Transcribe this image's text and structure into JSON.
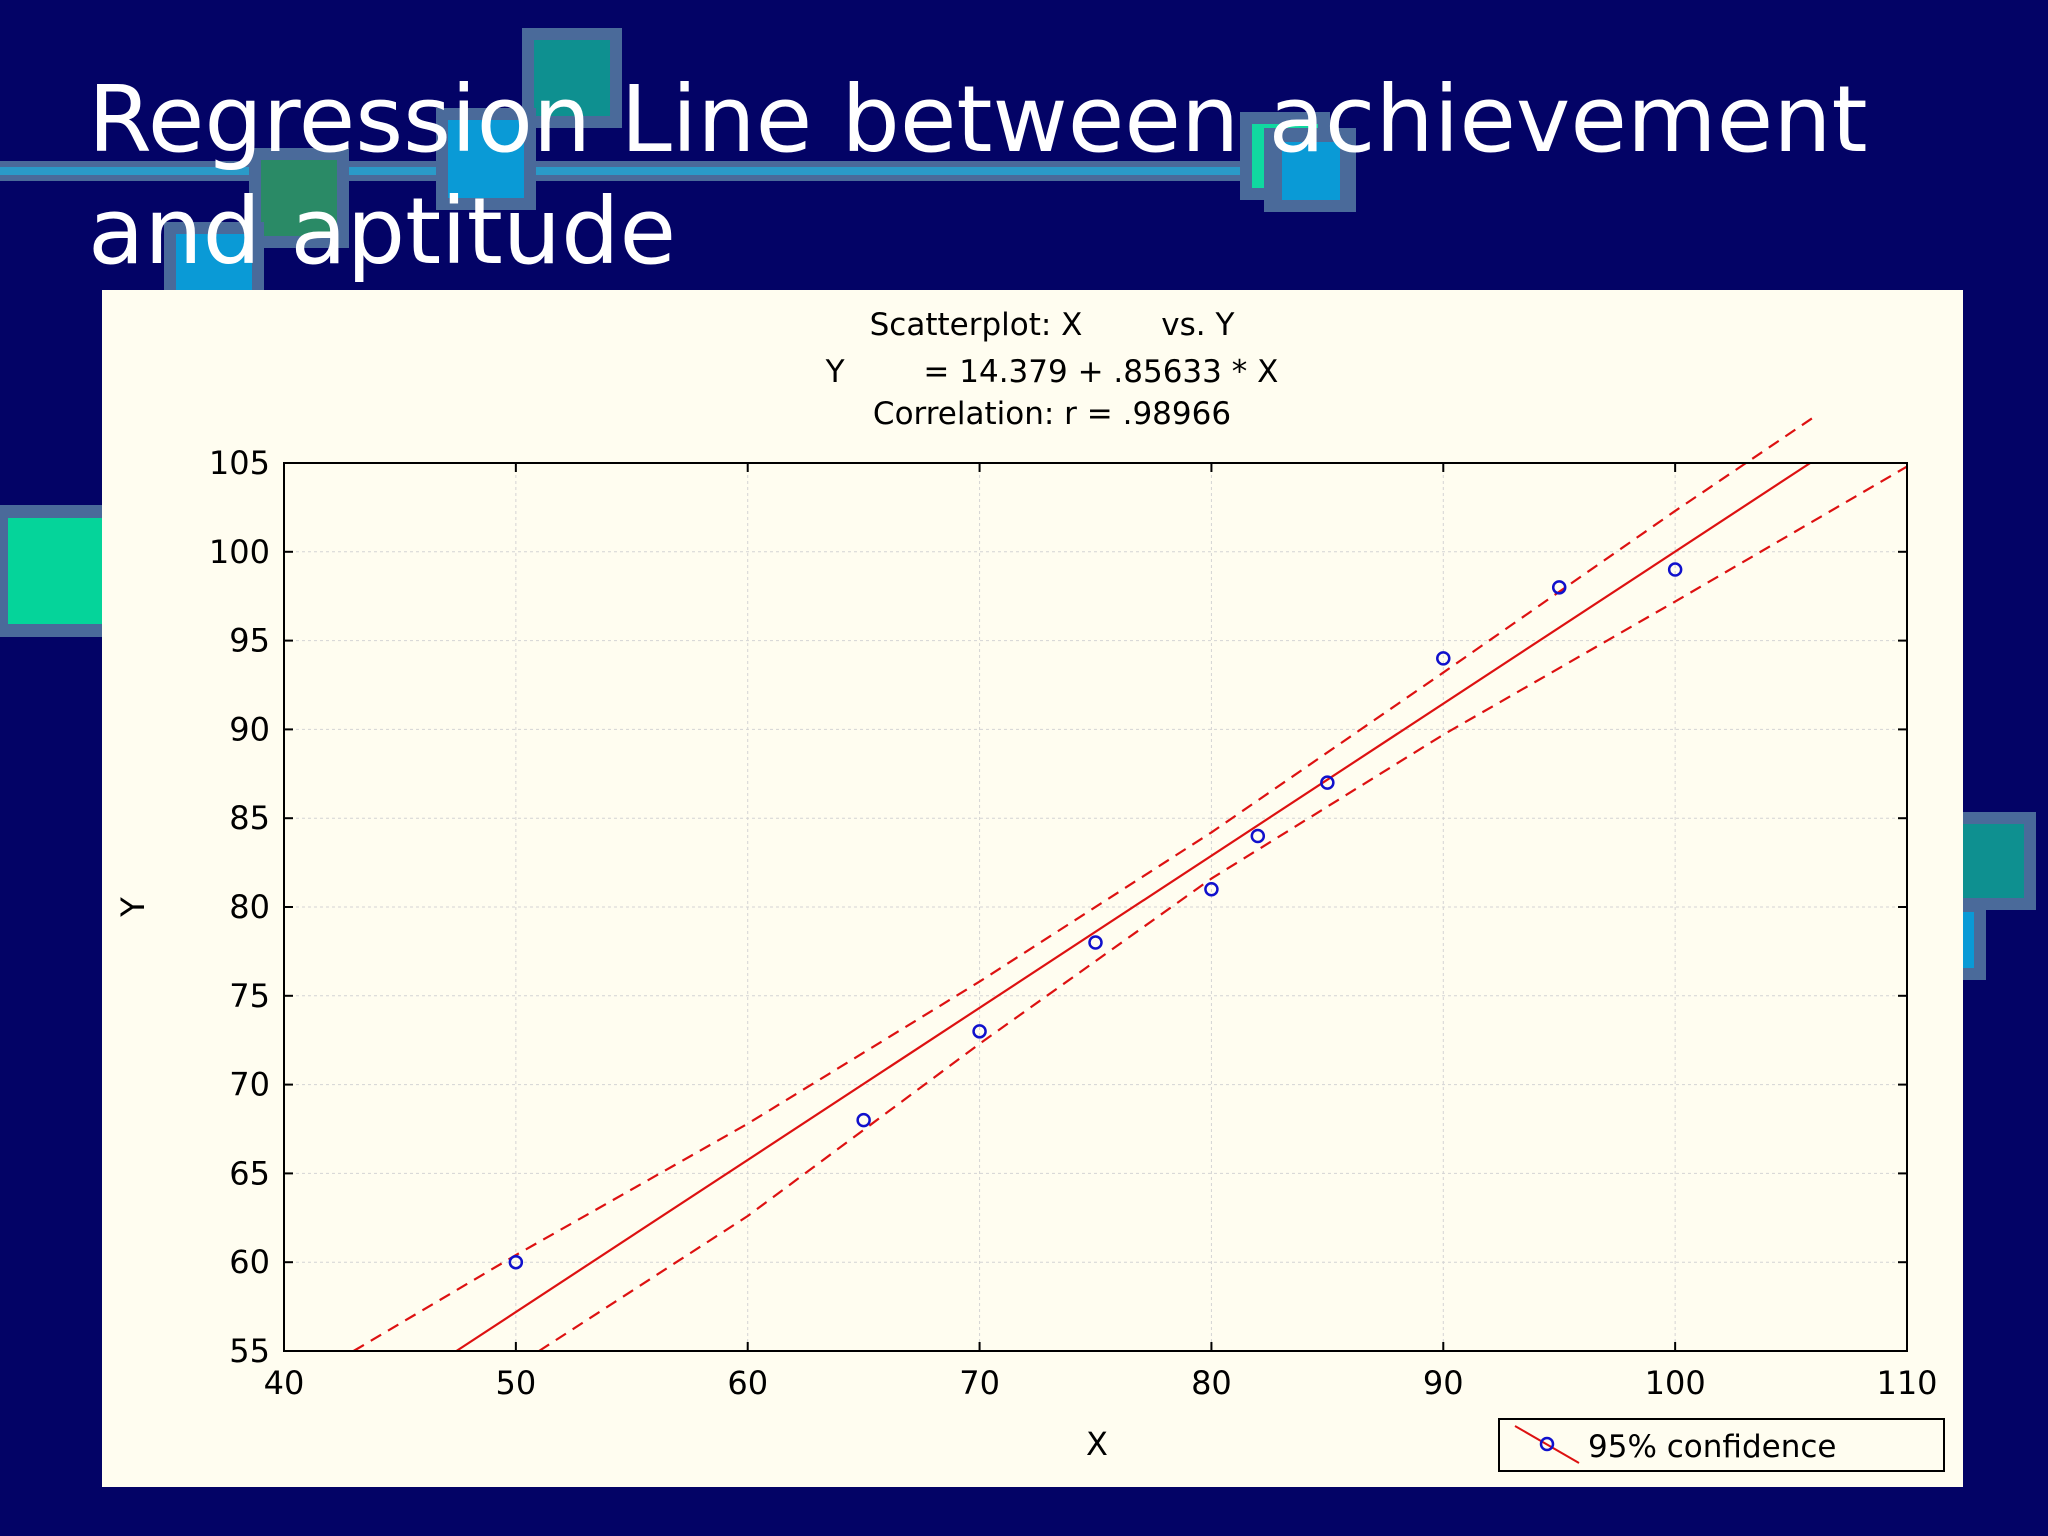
{
  "slide": {
    "title": "Regression Line between achievement and aptitude",
    "background_color": "#030366"
  },
  "chart_data": {
    "type": "scatter",
    "title_lines": [
      "Scatterplot: X        vs. Y",
      "Y        = 14.379 + .85633 * X",
      "Correlation: r = .98966"
    ],
    "xlabel": "X",
    "ylabel": "Y",
    "xlim": [
      40,
      110
    ],
    "ylim": [
      55,
      105
    ],
    "x_ticks": [
      40,
      50,
      60,
      70,
      80,
      90,
      100,
      110
    ],
    "y_ticks": [
      55,
      60,
      65,
      70,
      75,
      80,
      85,
      90,
      95,
      100,
      105
    ],
    "grid": true,
    "points": [
      {
        "x": 50,
        "y": 60
      },
      {
        "x": 65,
        "y": 68
      },
      {
        "x": 70,
        "y": 73
      },
      {
        "x": 75,
        "y": 78
      },
      {
        "x": 80,
        "y": 81
      },
      {
        "x": 82,
        "y": 84
      },
      {
        "x": 85,
        "y": 87
      },
      {
        "x": 90,
        "y": 94
      },
      {
        "x": 95,
        "y": 98
      },
      {
        "x": 100,
        "y": 99
      }
    ],
    "regression": {
      "intercept": 14.379,
      "slope": 0.85633
    },
    "confidence_band": {
      "upper": [
        [
          43,
          55
        ],
        [
          50,
          60.4
        ],
        [
          60,
          67.8
        ],
        [
          70,
          75.8
        ],
        [
          80,
          84.2
        ],
        [
          90,
          93.2
        ],
        [
          100,
          102.3
        ],
        [
          106,
          107.6
        ]
      ],
      "lower": [
        [
          51,
          55
        ],
        [
          60,
          62.6
        ],
        [
          70,
          72.3
        ],
        [
          80,
          81.6
        ],
        [
          90,
          89.7
        ],
        [
          100,
          97.2
        ],
        [
          110,
          104.8
        ]
      ]
    },
    "legend": {
      "label": "95% confidence",
      "position": "bottom-right"
    },
    "colors": {
      "points": "#1010cc",
      "regression": "#dd1111",
      "confidence": "#dd1111",
      "panel": "#fffdf0"
    }
  }
}
